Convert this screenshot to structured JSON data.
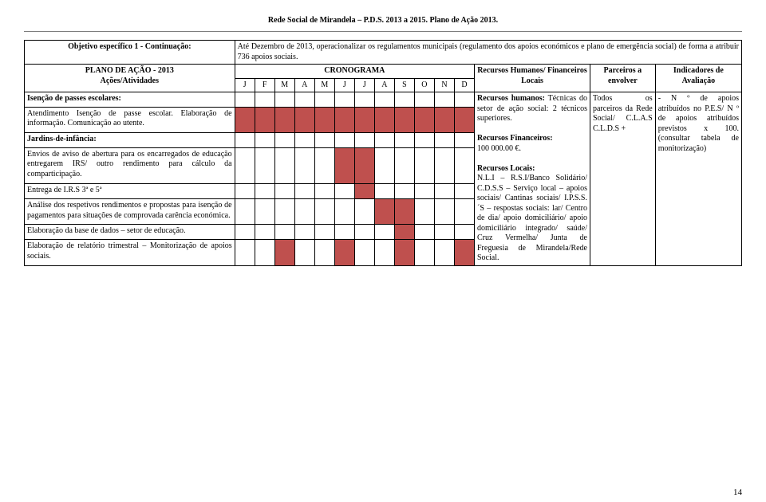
{
  "header": "Rede Social de Mirandela – P.D.S. 2013 a 2015. Plano de Ação 2013.",
  "pageNumber": "14",
  "colors": {
    "fill": "#bf504e",
    "border": "#000000",
    "background": "#ffffff"
  },
  "objective": {
    "title": "Objetivo específico 1 - Continuação:",
    "planTitle": "PLANO DE AÇÃO - 2013",
    "planSubtitle": "Ações/Atividades"
  },
  "intro": "Até Dezembro de 2013, operacionalizar os regulamentos municipais (regulamento dos apoios económicos e plano de emergência social) de forma a atribuir 736 apoios sociais.",
  "columns": {
    "cronograma": "CRONOGRAMA",
    "months": [
      "J",
      "F",
      "M",
      "A",
      "M",
      "J",
      "J",
      "A",
      "S",
      "O",
      "N",
      "D"
    ],
    "rh": "Recursos Humanos/ Financeiros Locais",
    "parceiros": "Parceiros a envolver",
    "indicadores": "Indicadores de Avaliação"
  },
  "activities": [
    {
      "key": "isencao",
      "bold": true,
      "text": "Isenção de passes escolares:",
      "fill": [
        0,
        0,
        0,
        0,
        0,
        0,
        0,
        0,
        0,
        0,
        0,
        0
      ]
    },
    {
      "key": "atend",
      "bold": false,
      "text": "Atendimento Isenção de passe escolar. Elaboração de informação. Comunicação ao utente.",
      "fill": [
        1,
        1,
        1,
        1,
        1,
        1,
        1,
        1,
        1,
        1,
        1,
        1
      ]
    },
    {
      "key": "jardins",
      "bold": true,
      "text": "Jardins-de-infância:",
      "fill": [
        0,
        0,
        0,
        0,
        0,
        0,
        0,
        0,
        0,
        0,
        0,
        0
      ]
    },
    {
      "key": "envios",
      "bold": false,
      "text": "Envios de aviso de abertura para os encarregados de educação entregarem IRS/ outro rendimento para cálculo da comparticipação.",
      "fill": [
        0,
        0,
        0,
        0,
        0,
        1,
        1,
        0,
        0,
        0,
        0,
        0
      ]
    },
    {
      "key": "entrega",
      "bold": false,
      "text": "Entrega de I.R.S 3ª e 5ª",
      "fill": [
        0,
        0,
        0,
        0,
        0,
        0,
        1,
        0,
        0,
        0,
        0,
        0
      ]
    },
    {
      "key": "analise",
      "bold": false,
      "text": "Análise dos respetivos rendimentos e propostas para isenção de pagamentos para situações de comprovada carência económica.",
      "fill": [
        0,
        0,
        0,
        0,
        0,
        0,
        0,
        1,
        1,
        0,
        0,
        0
      ]
    },
    {
      "key": "base",
      "bold": false,
      "text": "Elaboração da base de dados – setor de educação.",
      "fill": [
        0,
        0,
        0,
        0,
        0,
        0,
        0,
        0,
        1,
        0,
        0,
        0
      ]
    },
    {
      "key": "relatorio",
      "bold": false,
      "text": "Elaboração de relatório trimestral – Monitorização de apoios sociais.",
      "fill": [
        0,
        0,
        1,
        0,
        0,
        1,
        0,
        0,
        1,
        0,
        0,
        1
      ]
    }
  ],
  "rhText": {
    "l1": "Recursos humanos:",
    "l2": "Técnicas do setor de ação social: 2 técnicos superiores.",
    "l3": "Recursos Financeiros:",
    "l4": "100 000.00 €.",
    "l5": "Recursos Locais:",
    "l6": "N.L.I – R.S.I/Banco Solidário/ C.D.S.S – Serviço local – apoios sociais/ Cantinas sociais/ I.P.S.S.´S – respostas sociais: lar/ Centro de dia/ apoio domiciliário/ apoio domiciliário integrado/ saúde/ Cruz Vermelha/ Junta de Freguesia de Mirandela/Rede Social."
  },
  "parceirosText": "Todos os parceiros da Rede Social/ C.L.A.S C.L.D.S +",
  "indicadoresText": "- N º de apoios atribuídos no P.E.S/ N º de apoios atribuídos previstos x 100. (consultar tabela de monitorização)"
}
